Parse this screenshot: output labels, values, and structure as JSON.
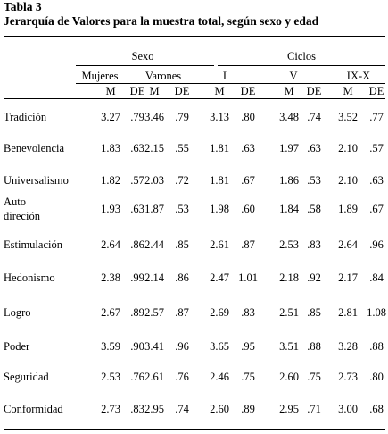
{
  "table": {
    "label": "Tabla 3",
    "title": "Jerarquía de Valores para la muestra total, según sexo y edad",
    "groups": {
      "sexo": "Sexo",
      "ciclos": "Ciclos"
    },
    "subgroups": [
      "Mujeres",
      "Varones",
      "I",
      "V",
      "IX-X"
    ],
    "stat_headers": [
      "M",
      "DE"
    ],
    "rows": [
      {
        "label": [
          "Tradición"
        ],
        "values": [
          "3.27",
          ".79",
          "3.46",
          ".79",
          "3.13",
          ".80",
          "3.48",
          ".74",
          "3.52",
          ".77"
        ]
      },
      {
        "label": [
          "Benevolencia"
        ],
        "values": [
          "1.83",
          ".63",
          "2.15",
          ".55",
          "1.81",
          ".63",
          "1.97",
          ".63",
          "2.10",
          ".57"
        ]
      },
      {
        "label": [
          "Universalismo"
        ],
        "values": [
          "1.82",
          ".57",
          "2.03",
          ".72",
          "1.81",
          ".67",
          "1.86",
          ".53",
          "2.10",
          ".63"
        ]
      },
      {
        "label": [
          "Auto",
          "direción"
        ],
        "values": [
          "1.93",
          ".63",
          "1.87",
          ".53",
          "1.98",
          ".60",
          "1.84",
          ".58",
          "1.89",
          ".67"
        ]
      },
      {
        "label": [
          "Estimulación"
        ],
        "values": [
          "2.64",
          ".86",
          "2.44",
          ".85",
          "2.61",
          ".87",
          "2.53",
          ".83",
          "2.64",
          ".96"
        ]
      },
      {
        "label": [
          "Hedonismo"
        ],
        "values": [
          "2.38",
          ".99",
          "2.14",
          ".86",
          "2.47",
          "1.01",
          "2.18",
          ".92",
          "2.17",
          ".84"
        ]
      },
      {
        "label": [
          "Logro"
        ],
        "values": [
          "2.67",
          ".89",
          "2.57",
          ".87",
          "2.69",
          ".83",
          "2.51",
          ".85",
          "2.81",
          "1.08"
        ]
      },
      {
        "label": [
          "Poder"
        ],
        "values": [
          "3.59",
          ".90",
          "3.41",
          ".96",
          "3.65",
          ".95",
          "3.51",
          ".88",
          "3.28",
          ".88"
        ]
      },
      {
        "label": [
          "Seguridad"
        ],
        "values": [
          "2.53",
          ".76",
          "2.61",
          ".76",
          "2.46",
          ".75",
          "2.60",
          ".75",
          "2.73",
          ".80"
        ]
      },
      {
        "label": [
          "Conformidad"
        ],
        "values": [
          "2.73",
          ".83",
          "2.95",
          ".74",
          "2.60",
          ".89",
          "2.95",
          ".71",
          "3.00",
          ".68"
        ]
      }
    ]
  }
}
